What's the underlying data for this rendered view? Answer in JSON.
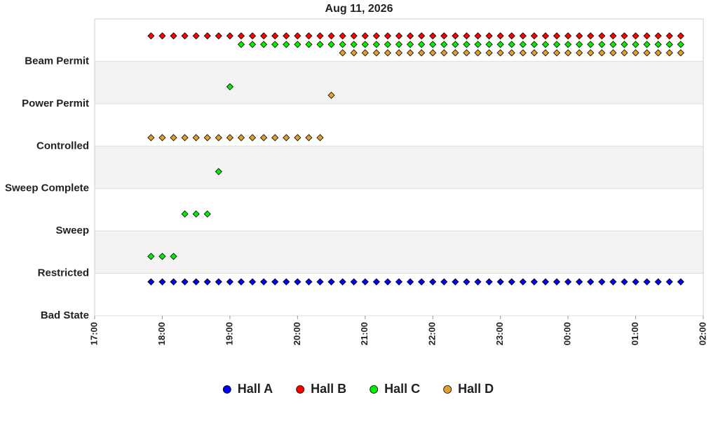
{
  "chart_data": {
    "type": "scatter",
    "title": "Aug 11, 2026",
    "x": [
      1070,
      1080,
      1090,
      1100,
      1110,
      1120,
      1130,
      1140,
      1150,
      1160,
      1170,
      1180,
      1190,
      1200,
      1210,
      1220,
      1230,
      1240,
      1250,
      1260,
      1270,
      1280,
      1290,
      1300,
      1310,
      1320,
      1330,
      1340,
      1350,
      1360,
      1370,
      1380,
      1390,
      1400,
      1410,
      1420,
      1430,
      1440,
      1450,
      1460,
      1470,
      1480,
      1490,
      1500,
      1510,
      1520,
      1530,
      1540
    ],
    "series": [
      {
        "name": "Hall A",
        "color": "#0000ff",
        "values": [
          0.8,
          0.8,
          0.8,
          0.8,
          0.8,
          0.8,
          0.8,
          0.8,
          0.8,
          0.8,
          0.8,
          0.8,
          0.8,
          0.8,
          0.8,
          0.8,
          0.8,
          0.8,
          0.8,
          0.8,
          0.8,
          0.8,
          0.8,
          0.8,
          0.8,
          0.8,
          0.8,
          0.8,
          0.8,
          0.8,
          0.8,
          0.8,
          0.8,
          0.8,
          0.8,
          0.8,
          0.8,
          0.8,
          0.8,
          0.8,
          0.8,
          0.8,
          0.8,
          0.8,
          0.8,
          0.8,
          0.8,
          0.8
        ]
      },
      {
        "name": "Hall B",
        "color": "#ff0000",
        "values": [
          6.6,
          6.6,
          6.6,
          6.6,
          6.6,
          6.6,
          6.6,
          6.6,
          6.6,
          6.6,
          6.6,
          6.6,
          6.6,
          6.6,
          6.6,
          6.6,
          6.6,
          6.6,
          6.6,
          6.6,
          6.6,
          6.6,
          6.6,
          6.6,
          6.6,
          6.6,
          6.6,
          6.6,
          6.6,
          6.6,
          6.6,
          6.6,
          6.6,
          6.6,
          6.6,
          6.6,
          6.6,
          6.6,
          6.6,
          6.6,
          6.6,
          6.6,
          6.6,
          6.6,
          6.6,
          6.6,
          6.6,
          6.6
        ]
      },
      {
        "name": "Hall C",
        "color": "#00ee00",
        "values": [
          1.4,
          1.4,
          1.4,
          2.4,
          2.4,
          2.4,
          3.4,
          5.4,
          6.4,
          6.4,
          6.4,
          6.4,
          6.4,
          6.4,
          6.4,
          6.4,
          6.4,
          6.4,
          6.4,
          6.4,
          6.4,
          6.4,
          6.4,
          6.4,
          6.4,
          6.4,
          6.4,
          6.4,
          6.4,
          6.4,
          6.4,
          6.4,
          6.4,
          6.4,
          6.4,
          6.4,
          6.4,
          6.4,
          6.4,
          6.4,
          6.4,
          6.4,
          6.4,
          6.4,
          6.4,
          6.4,
          6.4,
          6.4
        ]
      },
      {
        "name": "Hall D",
        "color": "#e0a030",
        "values": [
          4.2,
          4.2,
          4.2,
          4.2,
          4.2,
          4.2,
          4.2,
          4.2,
          4.2,
          4.2,
          4.2,
          4.2,
          4.2,
          4.2,
          4.2,
          4.2,
          5.2,
          6.2,
          6.2,
          6.2,
          6.2,
          6.2,
          6.2,
          6.2,
          6.2,
          6.2,
          6.2,
          6.2,
          6.2,
          6.2,
          6.2,
          6.2,
          6.2,
          6.2,
          6.2,
          6.2,
          6.2,
          6.2,
          6.2,
          6.2,
          6.2,
          6.2,
          6.2,
          6.2,
          6.2,
          6.2,
          6.2,
          6.2
        ]
      }
    ],
    "xlim": [
      1020,
      1560
    ],
    "xticks": [
      {
        "value": 1020,
        "label": "17:00"
      },
      {
        "value": 1080,
        "label": "18:00"
      },
      {
        "value": 1140,
        "label": "19:00"
      },
      {
        "value": 1200,
        "label": "20:00"
      },
      {
        "value": 1260,
        "label": "21:00"
      },
      {
        "value": 1320,
        "label": "22:00"
      },
      {
        "value": 1380,
        "label": "23:00"
      },
      {
        "value": 1440,
        "label": "00:00"
      },
      {
        "value": 1500,
        "label": "01:00"
      },
      {
        "value": 1560,
        "label": "02:00"
      }
    ],
    "ylim": [
      0,
      7
    ],
    "yticks": [
      {
        "value": 0,
        "label": "Bad State"
      },
      {
        "value": 1,
        "label": "Restricted"
      },
      {
        "value": 2,
        "label": "Sweep"
      },
      {
        "value": 3,
        "label": "Sweep Complete"
      },
      {
        "value": 4,
        "label": "Controlled"
      },
      {
        "value": 5,
        "label": "Power Permit"
      },
      {
        "value": 6,
        "label": "Beam Permit"
      }
    ],
    "legend": "bottom"
  }
}
